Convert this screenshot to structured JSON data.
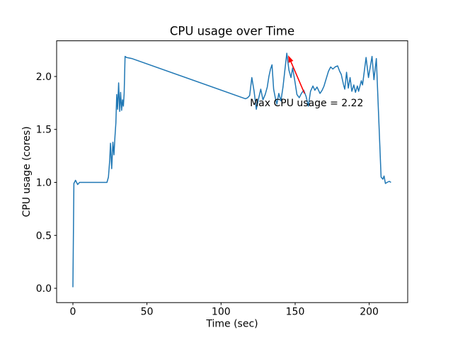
{
  "chart_data": {
    "type": "line",
    "title": "CPU usage over Time",
    "xlabel": "Time (sec)",
    "ylabel": "CPU usage (cores)",
    "x_ticks": [
      0,
      50,
      100,
      150,
      200
    ],
    "x_tick_labels": [
      "0",
      "50",
      "100",
      "150",
      "200"
    ],
    "y_ticks": [
      0.0,
      0.5,
      1.0,
      1.5,
      2.0
    ],
    "y_tick_labels": [
      "0.0",
      "0.5",
      "1.0",
      "1.5",
      "2.0"
    ],
    "xlim": [
      -10.97,
      225.97
    ],
    "ylim": [
      -0.135,
      2.337
    ],
    "grid": false,
    "legend": null,
    "line_color": "#1f77b4",
    "spine_color": "#000000",
    "background_color": "#ffffff",
    "max_value": 2.22,
    "annotation": {
      "text": "Max CPU usage = 2.22",
      "color": "#ff0000",
      "text_xy": [
        119.5,
        1.72
      ],
      "arrow_from": [
        156.3,
        1.84
      ],
      "arrow_to": [
        145.3,
        2.2
      ]
    },
    "points": [
      [
        0,
        0.01
      ],
      [
        0.7,
        0.99
      ],
      [
        1.8,
        1.02
      ],
      [
        3.2,
        0.98
      ],
      [
        4.5,
        1.0
      ],
      [
        7,
        1.0
      ],
      [
        10,
        1.0
      ],
      [
        13,
        1.0
      ],
      [
        16,
        1.0
      ],
      [
        19,
        1.0
      ],
      [
        21.5,
        1.0
      ],
      [
        23,
        1.0
      ],
      [
        24,
        1.05
      ],
      [
        24.8,
        1.2
      ],
      [
        25.4,
        1.37
      ],
      [
        26.2,
        1.13
      ],
      [
        27,
        1.38
      ],
      [
        27.7,
        1.26
      ],
      [
        28.4,
        1.43
      ],
      [
        29,
        1.56
      ],
      [
        29.6,
        1.83
      ],
      [
        30.2,
        1.69
      ],
      [
        30.9,
        1.94
      ],
      [
        31.6,
        1.67
      ],
      [
        32.2,
        1.85
      ],
      [
        32.9,
        1.68
      ],
      [
        33.5,
        1.78
      ],
      [
        34.1,
        1.72
      ],
      [
        34.6,
        1.84
      ],
      [
        35.2,
        2.19
      ],
      [
        36.2,
        2.18
      ],
      [
        39.7,
        2.17
      ],
      [
        116.5,
        1.79
      ],
      [
        118,
        1.8
      ],
      [
        119.3,
        1.82
      ],
      [
        120.8,
        1.99
      ],
      [
        122.3,
        1.86
      ],
      [
        123.8,
        1.69
      ],
      [
        125.3,
        1.79
      ],
      [
        126.8,
        1.88
      ],
      [
        128.3,
        1.78
      ],
      [
        129.8,
        1.83
      ],
      [
        131.2,
        1.9
      ],
      [
        132.3,
        2.0
      ],
      [
        133.4,
        2.07
      ],
      [
        134.4,
        2.11
      ],
      [
        135.5,
        1.88
      ],
      [
        136.6,
        1.8
      ],
      [
        137.7,
        1.74
      ],
      [
        139,
        1.84
      ],
      [
        140.4,
        1.77
      ],
      [
        141.8,
        1.9
      ],
      [
        143,
        2.05
      ],
      [
        144.4,
        2.22
      ],
      [
        145.8,
        2.06
      ],
      [
        147.2,
        1.99
      ],
      [
        148.3,
        2.08
      ],
      [
        149.8,
        1.96
      ],
      [
        151.2,
        1.83
      ],
      [
        152.8,
        1.8
      ],
      [
        154.2,
        1.84
      ],
      [
        155.8,
        1.87
      ],
      [
        157.4,
        1.81
      ],
      [
        158.9,
        1.72
      ],
      [
        160.4,
        1.86
      ],
      [
        162,
        1.91
      ],
      [
        163.3,
        1.87
      ],
      [
        164.8,
        1.9
      ],
      [
        166.8,
        1.84
      ],
      [
        168.2,
        1.87
      ],
      [
        169.5,
        1.91
      ],
      [
        171,
        1.98
      ],
      [
        172.5,
        2.05
      ],
      [
        174,
        2.09
      ],
      [
        175.5,
        2.07
      ],
      [
        177,
        2.09
      ],
      [
        178.7,
        2.1
      ],
      [
        180,
        2.05
      ],
      [
        181.1,
        2.02
      ],
      [
        182.7,
        1.92
      ],
      [
        183.5,
        1.88
      ],
      [
        184.7,
        2.04
      ],
      [
        185.9,
        1.89
      ],
      [
        187.1,
        1.99
      ],
      [
        188.3,
        1.86
      ],
      [
        189.6,
        1.92
      ],
      [
        190.7,
        1.85
      ],
      [
        192,
        1.91
      ],
      [
        192.8,
        1.86
      ],
      [
        194.7,
        1.96
      ],
      [
        195.5,
        1.92
      ],
      [
        197.9,
        2.18
      ],
      [
        199.5,
        1.99
      ],
      [
        201.9,
        2.19
      ],
      [
        203.2,
        1.97
      ],
      [
        204.8,
        2.17
      ],
      [
        208,
        1.05
      ],
      [
        209.2,
        1.03
      ],
      [
        210,
        1.06
      ],
      [
        210.9,
        0.99
      ],
      [
        212,
        1.0
      ],
      [
        213.5,
        1.01
      ],
      [
        214.7,
        1.0
      ]
    ]
  }
}
